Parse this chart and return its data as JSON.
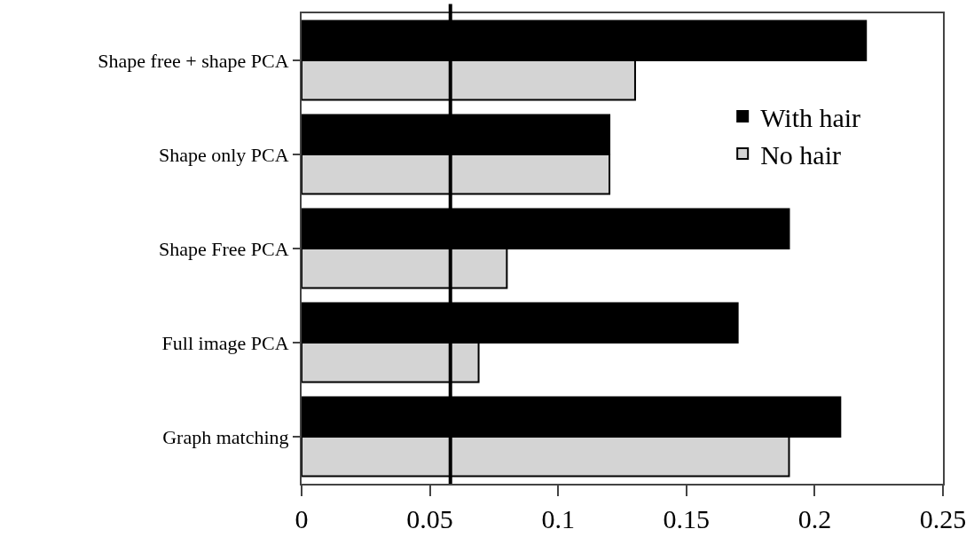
{
  "chart_data": {
    "type": "bar",
    "orientation": "horizontal",
    "categories": [
      "Shape free + shape PCA",
      "Shape only PCA",
      "Shape Free PCA",
      "Full image PCA",
      "Graph matching"
    ],
    "series": [
      {
        "name": "With hair",
        "color": "#000000",
        "values": [
          0.22,
          0.12,
          0.19,
          0.17,
          0.21
        ]
      },
      {
        "name": "No hair",
        "color": "#d4d4d4",
        "values": [
          0.13,
          0.12,
          0.08,
          0.069,
          0.19
        ]
      }
    ],
    "xlim": [
      0,
      0.25
    ],
    "xticks": [
      0,
      0.05,
      0.1,
      0.15,
      0.2,
      0.25
    ],
    "ref_lines": [
      {
        "axis": "x",
        "value": 0.058,
        "color": "#000000",
        "line_style": "solid"
      }
    ],
    "grid": false,
    "legend": "top right"
  }
}
